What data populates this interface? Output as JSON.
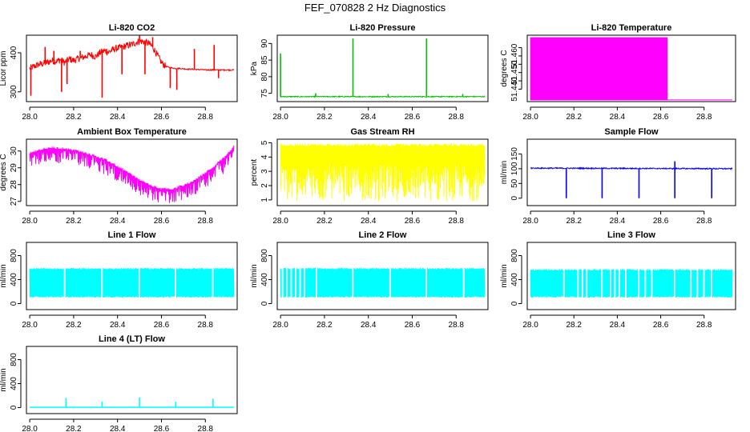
{
  "page_title": "FEF_070828  2 Hz Diagnostics",
  "chart_data": [
    {
      "id": "co2",
      "type": "line",
      "title": "Li-820 CO2",
      "ylabel": "Licor ppm",
      "color": "#ff0000",
      "xlim": [
        27.985,
        28.945
      ],
      "ylim": [
        275,
        445
      ],
      "xticks": [
        28.0,
        28.2,
        28.4,
        28.6,
        28.8
      ],
      "xtick_labels": [
        "28.0",
        "28.2",
        "28.4",
        "28.6",
        "28.8"
      ],
      "yticks": [
        300,
        400
      ],
      "ytick_labels": [
        "300",
        "400"
      ],
      "x": [
        28.0,
        28.02,
        28.04,
        28.06,
        28.08,
        28.1,
        28.12,
        28.14,
        28.16,
        28.18,
        28.2,
        28.22,
        28.24,
        28.26,
        28.28,
        28.3,
        28.32,
        28.34,
        28.36,
        28.38,
        28.4,
        28.42,
        28.44,
        28.46,
        28.48,
        28.5,
        28.52,
        28.54,
        28.56,
        28.58,
        28.6,
        28.62,
        28.64,
        28.66,
        28.68,
        28.7,
        28.72,
        28.74,
        28.76,
        28.78,
        28.8,
        28.82,
        28.84,
        28.86,
        28.88,
        28.9,
        28.93
      ],
      "y": [
        360,
        365,
        370,
        372,
        375,
        380,
        378,
        382,
        375,
        384,
        380,
        385,
        388,
        392,
        395,
        390,
        400,
        405,
        402,
        408,
        412,
        414,
        418,
        420,
        425,
        430,
        428,
        425,
        415,
        395,
        375,
        365,
        362,
        360,
        360,
        359,
        358,
        358,
        357,
        357,
        356,
        356,
        356,
        356,
        356,
        356,
        356
      ],
      "spikes": [
        {
          "x": 28.005,
          "y": 290
        },
        {
          "x": 28.07,
          "y": 415
        },
        {
          "x": 28.11,
          "y": 405
        },
        {
          "x": 28.145,
          "y": 300
        },
        {
          "x": 28.17,
          "y": 320
        },
        {
          "x": 28.23,
          "y": 405
        },
        {
          "x": 28.33,
          "y": 285
        },
        {
          "x": 28.35,
          "y": 410
        },
        {
          "x": 28.42,
          "y": 345
        },
        {
          "x": 28.5,
          "y": 445
        },
        {
          "x": 28.525,
          "y": 345
        },
        {
          "x": 28.56,
          "y": 440
        },
        {
          "x": 28.64,
          "y": 310
        },
        {
          "x": 28.67,
          "y": 305
        },
        {
          "x": 28.75,
          "y": 410
        },
        {
          "x": 28.84,
          "y": 420
        },
        {
          "x": 28.86,
          "y": 335
        }
      ]
    },
    {
      "id": "pressure",
      "type": "line",
      "title": "Li-820 Pressure",
      "ylabel": "kPa",
      "color": "#00c000",
      "xlim": [
        27.985,
        28.945
      ],
      "ylim": [
        72.5,
        92.5
      ],
      "xticks": [
        28.0,
        28.2,
        28.4,
        28.6,
        28.8
      ],
      "xtick_labels": [
        "28.0",
        "28.2",
        "28.4",
        "28.6",
        "28.8"
      ],
      "yticks": [
        75,
        80,
        85,
        90
      ],
      "ytick_labels": [
        "75",
        "80",
        "85",
        "90"
      ],
      "x": [
        28.0,
        28.93
      ],
      "y": [
        74.0,
        74.0
      ],
      "spikes": [
        {
          "x": 28.0,
          "y": 87
        },
        {
          "x": 28.33,
          "y": 91.5
        },
        {
          "x": 28.665,
          "y": 91.5
        },
        {
          "x": 28.16,
          "y": 75
        },
        {
          "x": 28.49,
          "y": 74.8
        },
        {
          "x": 28.83,
          "y": 74.8
        }
      ]
    },
    {
      "id": "licor_temp",
      "type": "area",
      "title": "Li-820 Temperature",
      "ylabel": "degrees C",
      "color": "#ff00ff",
      "xlim": [
        27.985,
        28.945
      ],
      "ylim": [
        51.4325,
        51.4725
      ],
      "xticks": [
        28.0,
        28.2,
        28.4,
        28.6,
        28.8
      ],
      "xtick_labels": [
        "28.0",
        "28.2",
        "28.4",
        "28.6",
        "28.8"
      ],
      "yticks": [
        51.44,
        51.445,
        51.45,
        51.455,
        51.46,
        51.465
      ],
      "ytick_labels": [
        "51.440",
        "",
        "51.450",
        "",
        "51.460",
        ""
      ],
      "x": [
        28.0,
        28.63,
        28.63,
        28.93
      ],
      "y": [
        51.471,
        51.471,
        51.4335,
        51.4335
      ],
      "band_low": 51.4335
    },
    {
      "id": "ambient",
      "type": "line",
      "title": "Ambient Box Temperature",
      "ylabel": "degrees C",
      "color": "#ff00ff",
      "xlim": [
        27.985,
        28.945
      ],
      "ylim": [
        26.75,
        30.7
      ],
      "xticks": [
        28.0,
        28.2,
        28.4,
        28.6,
        28.8
      ],
      "xtick_labels": [
        "28.0",
        "28.2",
        "28.4",
        "28.6",
        "28.8"
      ],
      "yticks": [
        27,
        28,
        29,
        30
      ],
      "ytick_labels": [
        "27",
        "28",
        "29",
        "30"
      ],
      "x": [
        28.0,
        28.05,
        28.1,
        28.15,
        28.2,
        28.25,
        28.3,
        28.35,
        28.4,
        28.45,
        28.5,
        28.55,
        28.6,
        28.65,
        28.7,
        28.75,
        28.8,
        28.85,
        28.9,
        28.93
      ],
      "y": [
        29.9,
        30.1,
        30.2,
        30.15,
        30.05,
        29.9,
        29.7,
        29.45,
        29.1,
        28.7,
        28.3,
        27.95,
        27.75,
        27.75,
        27.95,
        28.25,
        28.7,
        29.2,
        29.8,
        30.3
      ],
      "band_depth": 0.9
    },
    {
      "id": "rh",
      "type": "band",
      "title": "Gas Stream RH",
      "ylabel": "percent",
      "color": "#ffff00",
      "xlim": [
        27.985,
        28.945
      ],
      "ylim": [
        0.6,
        5.25
      ],
      "xticks": [
        28.0,
        28.2,
        28.4,
        28.6,
        28.8
      ],
      "xtick_labels": [
        "28.0",
        "28.2",
        "28.4",
        "28.6",
        "28.8"
      ],
      "yticks": [
        1,
        2,
        3,
        4,
        5
      ],
      "ytick_labels": [
        "1",
        "2",
        "3",
        "4",
        "5"
      ],
      "x": [
        28.0,
        28.93
      ],
      "y": [
        4.9,
        4.9
      ],
      "band_low": 0.9
    },
    {
      "id": "sample_flow",
      "type": "line",
      "title": "Sample Flow",
      "ylabel": "ml/min",
      "color": "#0000ff",
      "xlim": [
        27.985,
        28.945
      ],
      "ylim": [
        -25,
        200
      ],
      "xticks": [
        28.0,
        28.2,
        28.4,
        28.6,
        28.8
      ],
      "xtick_labels": [
        "28.0",
        "28.2",
        "28.4",
        "28.6",
        "28.8"
      ],
      "yticks": [
        0,
        50,
        100,
        150
      ],
      "ytick_labels": [
        "0",
        "50",
        "100",
        "150"
      ],
      "x": [
        28.0,
        28.93
      ],
      "y": [
        102,
        100
      ],
      "spikes": [
        {
          "x": 28.165,
          "y": 0
        },
        {
          "x": 28.33,
          "y": 0
        },
        {
          "x": 28.5,
          "y": 0
        },
        {
          "x": 28.665,
          "y": 0
        },
        {
          "x": 28.835,
          "y": 0
        },
        {
          "x": 28.665,
          "y": 125
        }
      ]
    },
    {
      "id": "line1",
      "type": "band",
      "title": "Line 1 Flow",
      "ylabel": "ml/min",
      "color": "#00ffff",
      "xlim": [
        27.985,
        28.945
      ],
      "ylim": [
        -100,
        1020
      ],
      "xticks": [
        28.0,
        28.2,
        28.4,
        28.6,
        28.8
      ],
      "xtick_labels": [
        "28.0",
        "28.2",
        "28.4",
        "28.6",
        "28.8"
      ],
      "yticks": [
        0,
        400,
        800
      ],
      "ytick_labels": [
        "0",
        "400",
        "800"
      ],
      "x": [
        28.0,
        28.93
      ],
      "y": [
        590,
        590
      ],
      "band_low": 100,
      "gaps": [
        28.16,
        28.33,
        28.5,
        28.665,
        28.835
      ]
    },
    {
      "id": "line2",
      "type": "band",
      "title": "Line 2 Flow",
      "ylabel": "ml/min",
      "color": "#00ffff",
      "xlim": [
        27.985,
        28.945
      ],
      "ylim": [
        -100,
        1020
      ],
      "xticks": [
        28.0,
        28.2,
        28.4,
        28.6,
        28.8
      ],
      "xtick_labels": [
        "28.0",
        "28.2",
        "28.4",
        "28.6",
        "28.8"
      ],
      "yticks": [
        0,
        400,
        800
      ],
      "ytick_labels": [
        "0",
        "400",
        "800"
      ],
      "x": [
        28.0,
        28.93
      ],
      "y": [
        590,
        590
      ],
      "band_low": 100,
      "gaps": [
        28.01,
        28.03,
        28.05,
        28.07,
        28.09,
        28.11,
        28.165,
        28.33,
        28.5,
        28.665,
        28.835
      ]
    },
    {
      "id": "line3",
      "type": "band",
      "title": "Line 3 Flow",
      "ylabel": "ml/min",
      "color": "#00ffff",
      "xlim": [
        27.985,
        28.945
      ],
      "ylim": [
        -100,
        1020
      ],
      "xticks": [
        28.0,
        28.2,
        28.4,
        28.6,
        28.8
      ],
      "xtick_labels": [
        "28.0",
        "28.2",
        "28.4",
        "28.6",
        "28.8"
      ],
      "yticks": [
        0,
        400,
        800
      ],
      "ytick_labels": [
        "0",
        "400",
        "800"
      ],
      "x": [
        28.0,
        28.93
      ],
      "y": [
        570,
        570
      ],
      "band_low": 100,
      "gaps": [
        28.155,
        28.22,
        28.24,
        28.26,
        28.33,
        28.37,
        28.39,
        28.41,
        28.44,
        28.5,
        28.53,
        28.56,
        28.665,
        28.74,
        28.77,
        28.8,
        28.835
      ]
    },
    {
      "id": "line4",
      "type": "line",
      "title": "Line 4 (LT) Flow",
      "ylabel": "ml/min",
      "color": "#00ffff",
      "xlim": [
        27.985,
        28.945
      ],
      "ylim": [
        -100,
        1020
      ],
      "xticks": [
        28.0,
        28.2,
        28.4,
        28.6,
        28.8
      ],
      "xtick_labels": [
        "28.0",
        "28.2",
        "28.4",
        "28.6",
        "28.8"
      ],
      "yticks": [
        0,
        400,
        800
      ],
      "ytick_labels": [
        "0",
        "400",
        "800"
      ],
      "x": [
        28.0,
        28.93
      ],
      "y": [
        5,
        5
      ],
      "spikes": [
        {
          "x": 28.165,
          "y": 160
        },
        {
          "x": 28.33,
          "y": 100
        },
        {
          "x": 28.5,
          "y": 170
        },
        {
          "x": 28.665,
          "y": 100
        },
        {
          "x": 28.835,
          "y": 150
        }
      ]
    }
  ]
}
